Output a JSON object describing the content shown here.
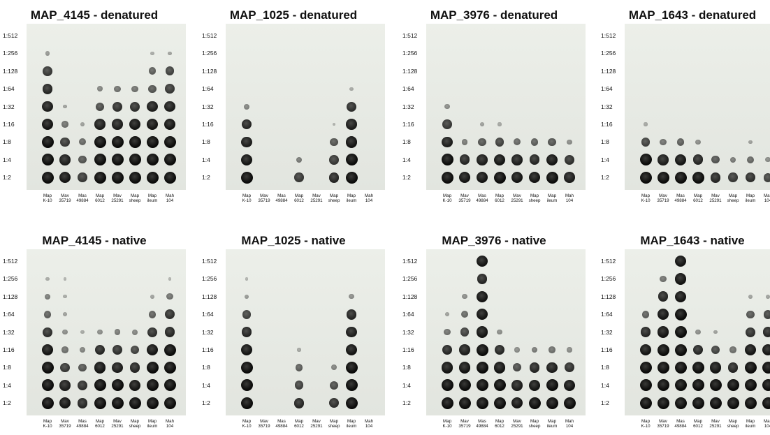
{
  "dilutions": [
    "1:512",
    "1:256",
    "1:128",
    "1:64",
    "1:32",
    "1:16",
    "1:8",
    "1:4",
    "1:2"
  ],
  "strains": [
    {
      "line1": "Map",
      "line2": "K-10"
    },
    {
      "line1": "Mav",
      "line2": "35719"
    },
    {
      "line1": "Mas",
      "line2": "49884"
    },
    {
      "line1": "Map",
      "line2": "6012"
    },
    {
      "line1": "Mav",
      "line2": "25291"
    },
    {
      "line1": "Map",
      "line2": "sheep"
    },
    {
      "line1": "Map",
      "line2": "ileum"
    },
    {
      "line1": "Mah",
      "line2": "104"
    }
  ],
  "panels": [
    {
      "title": "MAP_4145 - denatured",
      "intensity": [
        [
          0,
          0,
          0,
          0,
          0,
          0,
          0,
          0
        ],
        [
          0.25,
          0,
          0,
          0,
          0,
          0,
          0.15,
          0.2
        ],
        [
          0.75,
          0,
          0,
          0,
          0,
          0,
          0.55,
          0.7
        ],
        [
          0.85,
          0,
          0,
          0.35,
          0.45,
          0.45,
          0.6,
          0.75
        ],
        [
          0.9,
          0.2,
          0,
          0.65,
          0.8,
          0.8,
          0.9,
          0.9
        ],
        [
          0.95,
          0.45,
          0.2,
          0.9,
          0.9,
          0.95,
          0.95,
          0.95
        ],
        [
          1,
          0.75,
          0.5,
          1,
          1,
          1,
          1,
          1
        ],
        [
          1,
          0.9,
          0.6,
          1,
          1,
          1,
          1,
          1
        ],
        [
          1,
          0.95,
          0.75,
          1,
          1,
          1,
          1,
          1
        ]
      ]
    },
    {
      "title": "MAP_1025 - denatured",
      "intensity": [
        [
          0,
          0,
          0,
          0,
          0,
          0,
          0,
          0
        ],
        [
          0,
          0,
          0,
          0,
          0,
          0,
          0,
          0
        ],
        [
          0,
          0,
          0,
          0,
          0,
          0,
          0,
          0
        ],
        [
          0,
          0,
          0,
          0,
          0,
          0,
          0.15,
          0
        ],
        [
          0.35,
          0,
          0,
          0,
          0,
          0,
          0.8,
          0
        ],
        [
          0.85,
          0,
          0,
          0,
          0,
          0.1,
          0.9,
          0
        ],
        [
          0.9,
          0,
          0,
          0,
          0,
          0.6,
          0.95,
          0
        ],
        [
          0.95,
          0,
          0,
          0.4,
          0,
          0.75,
          1,
          0
        ],
        [
          1,
          0,
          0,
          0.75,
          0,
          0.85,
          1,
          0
        ]
      ]
    },
    {
      "title": "MAP_3976 - denatured",
      "intensity": [
        [
          0,
          0,
          0,
          0,
          0,
          0,
          0,
          0
        ],
        [
          0,
          0,
          0,
          0,
          0,
          0,
          0,
          0
        ],
        [
          0,
          0,
          0,
          0,
          0,
          0,
          0,
          0
        ],
        [
          0,
          0,
          0,
          0,
          0,
          0,
          0,
          0
        ],
        [
          0.3,
          0,
          0,
          0,
          0,
          0,
          0,
          0
        ],
        [
          0.75,
          0,
          0.2,
          0.15,
          0,
          0,
          0,
          0
        ],
        [
          0.9,
          0.4,
          0.6,
          0.7,
          0.5,
          0.55,
          0.6,
          0.3
        ],
        [
          1,
          0.85,
          0.9,
          0.95,
          0.9,
          0.85,
          0.95,
          0.8
        ],
        [
          1,
          0.95,
          0.95,
          1,
          0.95,
          0.95,
          1,
          0.9
        ]
      ]
    },
    {
      "title": "MAP_1643 - denatured",
      "intensity": [
        [
          0,
          0,
          0,
          0,
          0,
          0,
          0,
          0
        ],
        [
          0,
          0,
          0,
          0,
          0,
          0,
          0,
          0
        ],
        [
          0,
          0,
          0,
          0,
          0,
          0,
          0,
          0
        ],
        [
          0,
          0,
          0,
          0,
          0,
          0,
          0,
          0
        ],
        [
          0,
          0,
          0,
          0,
          0,
          0,
          0,
          0
        ],
        [
          0.15,
          0,
          0,
          0,
          0,
          0,
          0,
          0
        ],
        [
          0.7,
          0.45,
          0.55,
          0.3,
          0,
          0,
          0.2,
          0
        ],
        [
          1,
          0.9,
          0.95,
          0.85,
          0.6,
          0.4,
          0.5,
          0.3
        ],
        [
          1,
          1,
          1,
          1,
          0.85,
          0.75,
          0.8,
          0.7
        ]
      ]
    },
    {
      "title": "MAP_4145 - native",
      "intensity": [
        [
          0,
          0,
          0,
          0,
          0,
          0,
          0,
          0
        ],
        [
          0.15,
          0.1,
          0,
          0,
          0,
          0,
          0,
          0.1
        ],
        [
          0.4,
          0.15,
          0,
          0,
          0,
          0,
          0.2,
          0.45
        ],
        [
          0.55,
          0.2,
          0,
          0,
          0,
          0,
          0.55,
          0.8
        ],
        [
          0.8,
          0.3,
          0.15,
          0.3,
          0.4,
          0.35,
          0.8,
          0.85
        ],
        [
          0.95,
          0.45,
          0.35,
          0.85,
          0.8,
          0.7,
          0.95,
          1
        ],
        [
          1,
          0.75,
          0.6,
          0.95,
          0.9,
          0.85,
          1,
          1
        ],
        [
          1,
          0.9,
          0.8,
          1,
          1,
          0.95,
          1,
          1
        ],
        [
          1,
          0.95,
          0.85,
          1,
          1,
          1,
          1,
          1
        ]
      ]
    },
    {
      "title": "MAP_1025 - native",
      "intensity": [
        [
          0,
          0,
          0,
          0,
          0,
          0,
          0,
          0
        ],
        [
          0.1,
          0,
          0,
          0,
          0,
          0,
          0,
          0
        ],
        [
          0.25,
          0,
          0,
          0,
          0,
          0,
          0.3,
          0
        ],
        [
          0.7,
          0,
          0,
          0,
          0,
          0,
          0.85,
          0
        ],
        [
          0.85,
          0,
          0,
          0,
          0,
          0,
          0.9,
          0
        ],
        [
          0.95,
          0,
          0,
          0.15,
          0,
          0,
          0.95,
          0
        ],
        [
          1,
          0,
          0,
          0.55,
          0,
          0.35,
          1,
          0
        ],
        [
          1,
          0,
          0,
          0.7,
          0,
          0.65,
          1,
          0
        ],
        [
          1,
          0,
          0,
          0.85,
          0,
          0.8,
          1,
          0
        ]
      ]
    },
    {
      "title": "MAP_3976 - native",
      "intensity": [
        [
          0,
          0,
          0.95,
          0,
          0,
          0,
          0,
          0
        ],
        [
          0,
          0,
          0.85,
          0,
          0,
          0,
          0,
          0
        ],
        [
          0,
          0.3,
          0.95,
          0,
          0,
          0,
          0,
          0
        ],
        [
          0.2,
          0.5,
          0.95,
          0,
          0,
          0,
          0,
          0
        ],
        [
          0.45,
          0.7,
          0.95,
          0.3,
          0,
          0,
          0,
          0
        ],
        [
          0.85,
          0.9,
          1,
          0.85,
          0.3,
          0.4,
          0.45,
          0.3
        ],
        [
          0.95,
          0.95,
          1,
          0.95,
          0.65,
          0.85,
          0.9,
          0.8
        ],
        [
          1,
          1,
          1,
          1,
          0.9,
          0.95,
          1,
          0.95
        ],
        [
          1,
          1,
          1,
          1,
          0.95,
          1,
          1,
          1
        ]
      ]
    },
    {
      "title": "MAP_1643 - native",
      "intensity": [
        [
          0,
          0,
          0.95,
          0,
          0,
          0,
          0,
          0
        ],
        [
          0,
          0.45,
          0.95,
          0,
          0,
          0,
          0,
          0
        ],
        [
          0,
          0.85,
          0.95,
          0,
          0,
          0,
          0.2,
          0.2
        ],
        [
          0.55,
          0.95,
          1,
          0,
          0,
          0,
          0.6,
          0.7
        ],
        [
          0.85,
          0.95,
          1,
          0.3,
          0.2,
          0,
          0.8,
          0.85
        ],
        [
          0.95,
          1,
          1,
          0.85,
          0.7,
          0.45,
          0.95,
          0.95
        ],
        [
          1,
          1,
          1,
          1,
          0.95,
          0.85,
          1,
          1
        ],
        [
          1,
          1,
          1,
          1,
          1,
          1,
          1,
          1
        ],
        [
          1,
          1,
          1,
          1,
          1,
          1,
          1,
          1
        ]
      ]
    }
  ]
}
